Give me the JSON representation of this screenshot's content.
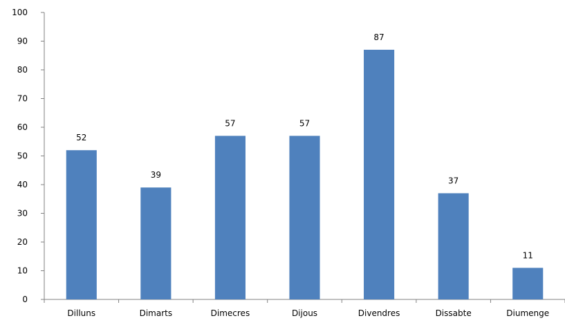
{
  "chart_data": {
    "type": "bar",
    "categories": [
      "Dilluns",
      "Dimarts",
      "Dimecres",
      "Dijous",
      "Divendres",
      "Dissabte",
      "Diumenge"
    ],
    "values": [
      52,
      39,
      57,
      57,
      87,
      37,
      11
    ],
    "data_labels": [
      "52",
      "39",
      "57",
      "57",
      "87",
      "37",
      "11"
    ],
    "yticks": [
      "0",
      "10",
      "20",
      "30",
      "40",
      "50",
      "60",
      "70",
      "80",
      "90",
      "100"
    ],
    "ylim": [
      0,
      100
    ],
    "title": "",
    "xlabel": "",
    "ylabel": "",
    "bar_color": "#4F81BD",
    "grid": false,
    "legend": "none"
  }
}
